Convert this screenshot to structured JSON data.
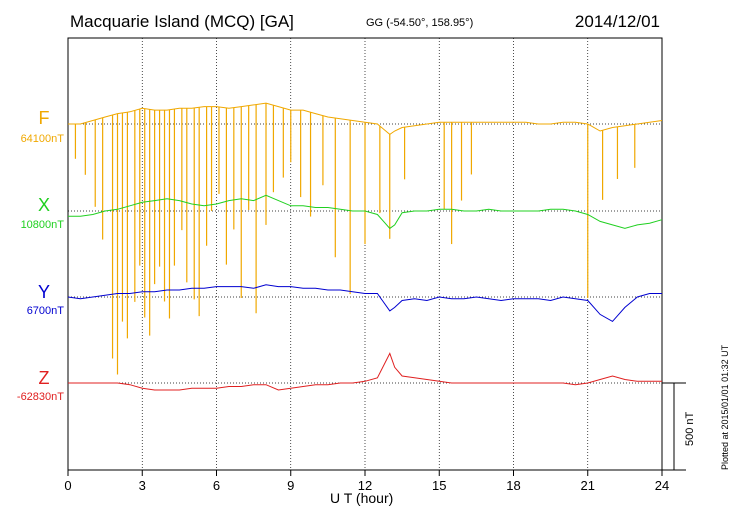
{
  "header": {
    "station": "Macquarie Island (MCQ)  [GA]",
    "coords": "GG (-54.50°, 158.95°)",
    "date": "2014/12/01"
  },
  "footer": {
    "plotted": "Plotted at 2015/01/01 01:32 UT"
  },
  "chart_data": {
    "type": "line",
    "xlabel": "U T (hour)",
    "xlim": [
      0,
      24
    ],
    "xticks": [
      0,
      3,
      6,
      9,
      12,
      15,
      18,
      21,
      24
    ],
    "scale_bar": "500 nT",
    "series": [
      {
        "name": "F",
        "baseline_label": "64100nT",
        "color": "#f0a800",
        "x": [
          0,
          0.5,
          1,
          1.5,
          2,
          2.5,
          3,
          3.5,
          4,
          4.5,
          5,
          5.5,
          6,
          6.5,
          7,
          7.5,
          8,
          8.5,
          9,
          9.5,
          10,
          10.5,
          11,
          11.5,
          12,
          12.5,
          13,
          13.2,
          13.5,
          14,
          14.5,
          15,
          15.5,
          16,
          16.5,
          17,
          17.5,
          18,
          18.5,
          19,
          19.5,
          20,
          20.5,
          21,
          21.5,
          22,
          22.5,
          23,
          23.5,
          24
        ],
        "offsets": [
          0,
          0,
          20,
          40,
          60,
          70,
          90,
          80,
          80,
          90,
          90,
          100,
          100,
          90,
          100,
          110,
          120,
          100,
          80,
          80,
          60,
          40,
          30,
          20,
          10,
          0,
          -60,
          -40,
          -20,
          -10,
          0,
          10,
          10,
          10,
          10,
          10,
          10,
          10,
          10,
          0,
          0,
          10,
          10,
          0,
          -40,
          -20,
          -10,
          0,
          10,
          20
        ],
        "spike_times": [
          0.3,
          0.7,
          1.1,
          1.4,
          1.8,
          2.0,
          2.2,
          2.4,
          2.7,
          2.9,
          3.1,
          3.3,
          3.5,
          3.7,
          3.9,
          4.1,
          4.3,
          4.6,
          4.8,
          5.1,
          5.3,
          5.6,
          5.8,
          6.1,
          6.4,
          6.7,
          7.0,
          7.3,
          7.6,
          8.0,
          8.3,
          8.7,
          9.0,
          9.4,
          9.8,
          10.3,
          10.8,
          11.4,
          12.0,
          12.6,
          13.0,
          13.6,
          15.2,
          15.5,
          15.9,
          16.3,
          21.0,
          21.6,
          22.2,
          22.9
        ],
        "spike_depths": [
          200,
          300,
          500,
          700,
          1400,
          1500,
          1200,
          1300,
          1100,
          900,
          1200,
          1300,
          1000,
          900,
          1100,
          1200,
          900,
          700,
          1000,
          1100,
          1200,
          800,
          600,
          500,
          900,
          700,
          1100,
          600,
          1200,
          700,
          500,
          400,
          300,
          500,
          600,
          400,
          800,
          1000,
          700,
          500,
          600,
          300,
          500,
          700,
          450,
          300,
          1000,
          400,
          300,
          250
        ]
      },
      {
        "name": "X",
        "baseline_label": "10800nT",
        "color": "#20d020",
        "x": [
          0,
          0.5,
          1,
          1.5,
          2,
          2.5,
          3,
          3.5,
          4,
          4.5,
          5,
          5.5,
          6,
          6.5,
          7,
          7.5,
          8,
          8.5,
          9,
          9.5,
          10,
          10.5,
          11,
          11.5,
          12,
          12.5,
          13,
          13.2,
          13.5,
          14,
          14.5,
          15,
          15.5,
          16,
          16.5,
          17,
          17.5,
          18,
          18.5,
          19,
          19.5,
          20,
          20.5,
          21,
          21.5,
          22,
          22.5,
          23,
          23.5,
          24
        ],
        "offsets": [
          -30,
          -30,
          -20,
          0,
          10,
          30,
          50,
          60,
          70,
          60,
          40,
          30,
          40,
          60,
          70,
          60,
          90,
          60,
          30,
          30,
          20,
          20,
          10,
          0,
          0,
          -20,
          -100,
          -80,
          -10,
          0,
          0,
          10,
          10,
          0,
          0,
          10,
          0,
          0,
          0,
          0,
          10,
          10,
          0,
          -20,
          -60,
          -80,
          -100,
          -80,
          -70,
          -50
        ]
      },
      {
        "name": "Y",
        "baseline_label": "6700nT",
        "color": "#0000d0",
        "x": [
          0,
          0.5,
          1,
          1.5,
          2,
          2.5,
          3,
          3.5,
          4,
          4.5,
          5,
          5.5,
          6,
          6.5,
          7,
          7.5,
          8,
          8.5,
          9,
          9.5,
          10,
          10.5,
          11,
          11.5,
          12,
          12.5,
          13,
          13.2,
          13.5,
          14,
          14.5,
          15,
          15.5,
          16,
          16.5,
          17,
          17.5,
          18,
          18.5,
          19,
          19.5,
          20,
          20.5,
          21,
          21.5,
          22,
          22.5,
          23,
          23.5,
          24
        ],
        "offsets": [
          0,
          -10,
          0,
          10,
          20,
          20,
          30,
          30,
          40,
          40,
          50,
          50,
          60,
          60,
          60,
          50,
          70,
          60,
          60,
          50,
          50,
          40,
          40,
          30,
          20,
          20,
          -80,
          -60,
          -20,
          -10,
          -20,
          0,
          -10,
          -10,
          0,
          -10,
          -20,
          -10,
          -10,
          -10,
          -20,
          0,
          -10,
          -20,
          -100,
          -140,
          -60,
          0,
          20,
          20
        ]
      },
      {
        "name": "Z",
        "baseline_label": "-62830nT",
        "color": "#e02020",
        "x": [
          0,
          0.5,
          1,
          1.5,
          2,
          2.5,
          3,
          3.5,
          4,
          4.5,
          5,
          5.5,
          6,
          6.5,
          7,
          7.5,
          8,
          8.5,
          9,
          9.5,
          10,
          10.5,
          11,
          11.5,
          12,
          12.5,
          13,
          13.2,
          13.5,
          14,
          14.5,
          15,
          15.5,
          16,
          16.5,
          17,
          17.5,
          18,
          18.5,
          19,
          19.5,
          20,
          20.5,
          21,
          21.5,
          22,
          22.5,
          23,
          23.5,
          24
        ],
        "offsets": [
          0,
          0,
          0,
          0,
          0,
          -10,
          -30,
          -40,
          -40,
          -40,
          -30,
          -30,
          -30,
          -20,
          -20,
          -10,
          -10,
          -40,
          -30,
          -20,
          -10,
          -10,
          0,
          0,
          10,
          30,
          170,
          90,
          40,
          30,
          20,
          10,
          0,
          0,
          0,
          0,
          0,
          0,
          0,
          0,
          0,
          0,
          -10,
          0,
          20,
          40,
          20,
          10,
          10,
          10
        ]
      }
    ]
  }
}
